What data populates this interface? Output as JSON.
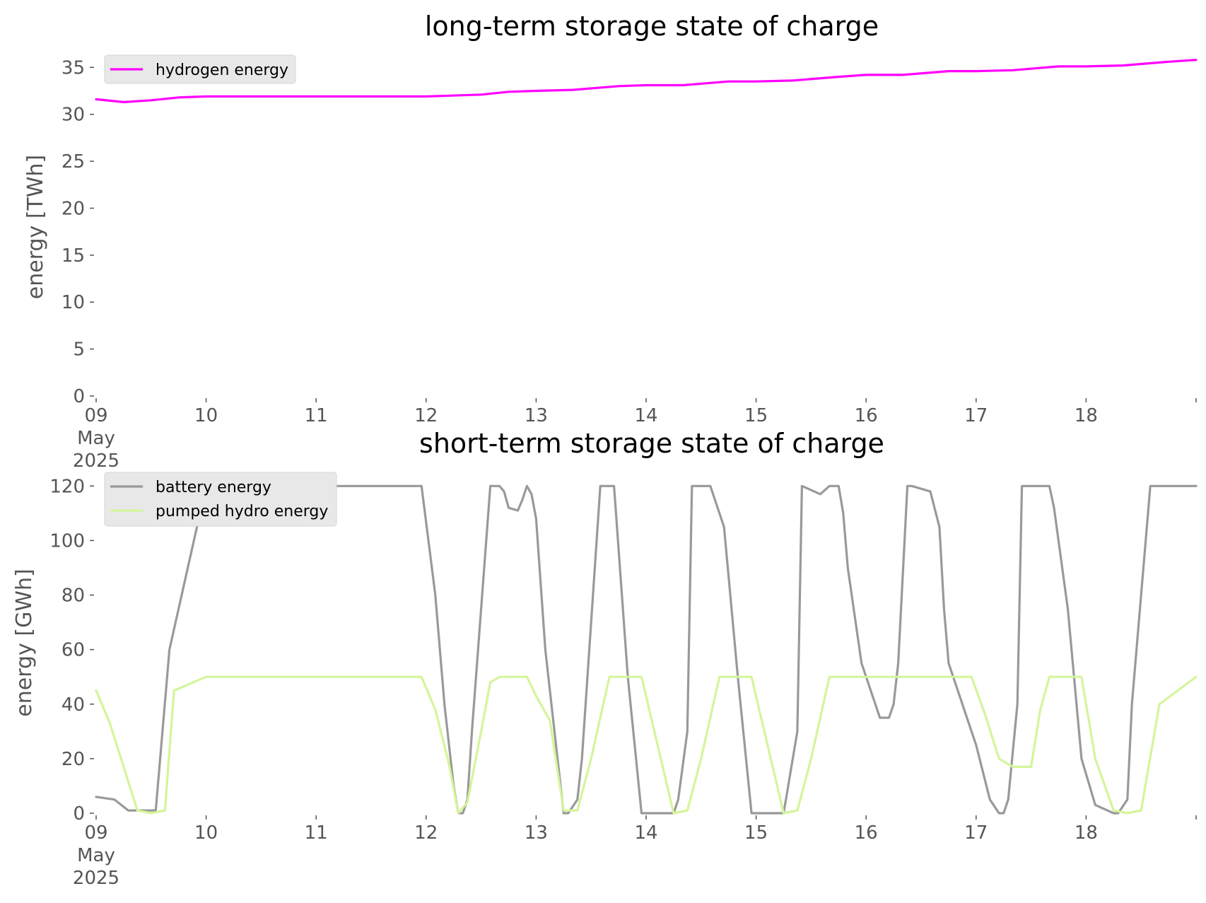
{
  "chart_data": [
    {
      "type": "line",
      "title": "long-term storage state of charge",
      "xlabel": "",
      "ylabel": "energy [TWh]",
      "xlim": [
        "2025-05-09",
        "2025-05-19"
      ],
      "ylim": [
        0,
        36
      ],
      "yticks": [
        0,
        5,
        10,
        15,
        20,
        25,
        30,
        35
      ],
      "x_tick_labels": [
        "09\nMay\n2025",
        "10",
        "11",
        "12",
        "13",
        "14",
        "15",
        "16",
        "17",
        "18"
      ],
      "grid": false,
      "legend_position": "top-left",
      "series": [
        {
          "name": "hydrogen energy",
          "color": "#ff00ff",
          "x": [
            "2025-05-09 00:00",
            "2025-05-09 06:00",
            "2025-05-09 12:00",
            "2025-05-09 18:00",
            "2025-05-10 00:00",
            "2025-05-10 12:00",
            "2025-05-11 00:00",
            "2025-05-11 12:00",
            "2025-05-12 00:00",
            "2025-05-12 12:00",
            "2025-05-12 18:00",
            "2025-05-13 00:00",
            "2025-05-13 08:00",
            "2025-05-13 18:00",
            "2025-05-14 00:00",
            "2025-05-14 08:00",
            "2025-05-14 18:00",
            "2025-05-15 00:00",
            "2025-05-15 08:00",
            "2025-05-15 18:00",
            "2025-05-16 00:00",
            "2025-05-16 08:00",
            "2025-05-16 18:00",
            "2025-05-17 00:00",
            "2025-05-17 08:00",
            "2025-05-17 18:00",
            "2025-05-18 00:00",
            "2025-05-18 08:00",
            "2025-05-18 18:00",
            "2025-05-19 00:00"
          ],
          "values": [
            31.6,
            31.3,
            31.5,
            31.8,
            31.9,
            31.9,
            31.9,
            31.9,
            31.9,
            32.1,
            32.4,
            32.5,
            32.6,
            33.0,
            33.1,
            33.1,
            33.5,
            33.5,
            33.6,
            34.0,
            34.2,
            34.2,
            34.6,
            34.6,
            34.7,
            35.1,
            35.1,
            35.2,
            35.6,
            35.8
          ]
        }
      ]
    },
    {
      "type": "line",
      "title": "short-term storage state of charge",
      "xlabel": "",
      "ylabel": "energy [GWh]",
      "xlim": [
        "2025-05-09",
        "2025-05-19"
      ],
      "ylim": [
        0,
        125
      ],
      "yticks": [
        0,
        20,
        40,
        60,
        80,
        100,
        120
      ],
      "x_tick_labels": [
        "09\nMay\n2025",
        "10",
        "11",
        "12",
        "13",
        "14",
        "15",
        "16",
        "17",
        "18"
      ],
      "grid": false,
      "legend_position": "top-left",
      "series": [
        {
          "name": "battery energy",
          "color": "#999999",
          "x": [
            "2025-05-09 00:00",
            "2025-05-09 04:00",
            "2025-05-09 07:00",
            "2025-05-09 10:00",
            "2025-05-09 13:00",
            "2025-05-09 16:00",
            "2025-05-10 00:00",
            "2025-05-11 00:00",
            "2025-05-11 23:00",
            "2025-05-12 02:00",
            "2025-05-12 04:00",
            "2025-05-12 06:00",
            "2025-05-12 07:00",
            "2025-05-12 08:00",
            "2025-05-12 09:00",
            "2025-05-12 10:00",
            "2025-05-12 14:00",
            "2025-05-12 16:00",
            "2025-05-12 17:00",
            "2025-05-12 18:00",
            "2025-05-12 20:00",
            "2025-05-12 21:00",
            "2025-05-12 22:00",
            "2025-05-12 23:00",
            "2025-05-13 00:00",
            "2025-05-13 02:00",
            "2025-05-13 06:00",
            "2025-05-13 07:00",
            "2025-05-13 09:00",
            "2025-05-13 10:00",
            "2025-05-13 14:00",
            "2025-05-13 16:00",
            "2025-05-13 17:00",
            "2025-05-13 20:00",
            "2025-05-13 23:00",
            "2025-05-14 06:00",
            "2025-05-14 07:00",
            "2025-05-14 09:00",
            "2025-05-14 10:00",
            "2025-05-14 14:00",
            "2025-05-14 16:00",
            "2025-05-14 17:00",
            "2025-05-14 20:00",
            "2025-05-14 23:00",
            "2025-05-15 06:00",
            "2025-05-15 07:00",
            "2025-05-15 09:00",
            "2025-05-15 10:00",
            "2025-05-15 14:00",
            "2025-05-15 16:00",
            "2025-05-15 17:00",
            "2025-05-15 18:00",
            "2025-05-15 19:00",
            "2025-05-15 20:00",
            "2025-05-15 23:00",
            "2025-05-16 03:00",
            "2025-05-16 05:00",
            "2025-05-16 06:00",
            "2025-05-16 07:00",
            "2025-05-16 09:00",
            "2025-05-16 10:00",
            "2025-05-16 14:00",
            "2025-05-16 16:00",
            "2025-05-16 17:00",
            "2025-05-16 18:00",
            "2025-05-17 00:00",
            "2025-05-17 03:00",
            "2025-05-17 05:00",
            "2025-05-17 06:00",
            "2025-05-17 07:00",
            "2025-05-17 09:00",
            "2025-05-17 10:00",
            "2025-05-17 14:00",
            "2025-05-17 16:00",
            "2025-05-17 17:00",
            "2025-05-17 20:00",
            "2025-05-17 23:00",
            "2025-05-18 02:00",
            "2025-05-18 06:00",
            "2025-05-18 07:00",
            "2025-05-18 09:00",
            "2025-05-18 10:00",
            "2025-05-18 14:00",
            "2025-05-18 16:00",
            "2025-05-18 17:00",
            "2025-05-18 19:00",
            "2025-05-19 00:00"
          ],
          "values": [
            6,
            5,
            1,
            1,
            1,
            60,
            120,
            120,
            120,
            80,
            40,
            10,
            0,
            0,
            5,
            30,
            120,
            120,
            118,
            112,
            111,
            115,
            120,
            117,
            108,
            60,
            0,
            0,
            5,
            20,
            120,
            120,
            120,
            50,
            0,
            0,
            5,
            30,
            120,
            120,
            110,
            105,
            50,
            0,
            0,
            10,
            30,
            120,
            117,
            120,
            120,
            120,
            110,
            90,
            55,
            35,
            35,
            40,
            55,
            120,
            120,
            118,
            105,
            75,
            55,
            25,
            5,
            0,
            0,
            5,
            40,
            120,
            120,
            120,
            112,
            75,
            20,
            3,
            0,
            0,
            5,
            40,
            120,
            120,
            120,
            120,
            120
          ]
        },
        {
          "name": "pumped hydro energy",
          "color": "#d4f59a",
          "x": [
            "2025-05-09 00:00",
            "2025-05-09 03:00",
            "2025-05-09 06:00",
            "2025-05-09 09:00",
            "2025-05-09 12:00",
            "2025-05-09 15:00",
            "2025-05-09 17:00",
            "2025-05-10 00:00",
            "2025-05-11 00:00",
            "2025-05-11 23:00",
            "2025-05-12 02:00",
            "2025-05-12 05:00",
            "2025-05-12 07:00",
            "2025-05-12 09:00",
            "2025-05-12 12:00",
            "2025-05-12 14:00",
            "2025-05-12 16:00",
            "2025-05-12 18:00",
            "2025-05-12 22:00",
            "2025-05-13 00:00",
            "2025-05-13 03:00",
            "2025-05-13 06:00",
            "2025-05-13 09:00",
            "2025-05-13 12:00",
            "2025-05-13 16:00",
            "2025-05-13 23:00",
            "2025-05-14 06:00",
            "2025-05-14 09:00",
            "2025-05-14 12:00",
            "2025-05-14 16:00",
            "2025-05-14 23:00",
            "2025-05-15 06:00",
            "2025-05-15 09:00",
            "2025-05-15 12:00",
            "2025-05-15 16:00",
            "2025-05-16 00:00",
            "2025-05-16 08:00",
            "2025-05-16 16:00",
            "2025-05-16 23:00",
            "2025-05-17 02:00",
            "2025-05-17 05:00",
            "2025-05-17 08:00",
            "2025-05-17 10:00",
            "2025-05-17 12:00",
            "2025-05-17 14:00",
            "2025-05-17 16:00",
            "2025-05-17 23:00",
            "2025-05-18 02:00",
            "2025-05-18 06:00",
            "2025-05-18 09:00",
            "2025-05-18 12:00",
            "2025-05-18 16:00",
            "2025-05-19 00:00"
          ],
          "values": [
            45,
            33,
            17,
            1,
            0,
            1,
            45,
            50,
            50,
            50,
            38,
            18,
            0,
            4,
            30,
            48,
            50,
            50,
            50,
            43,
            34,
            1,
            1,
            20,
            50,
            50,
            0,
            1,
            20,
            50,
            50,
            0,
            1,
            20,
            50,
            50,
            50,
            50,
            50,
            36,
            20,
            17,
            17,
            17,
            38,
            50,
            50,
            20,
            1,
            0,
            1,
            40,
            50
          ]
        }
      ]
    }
  ]
}
